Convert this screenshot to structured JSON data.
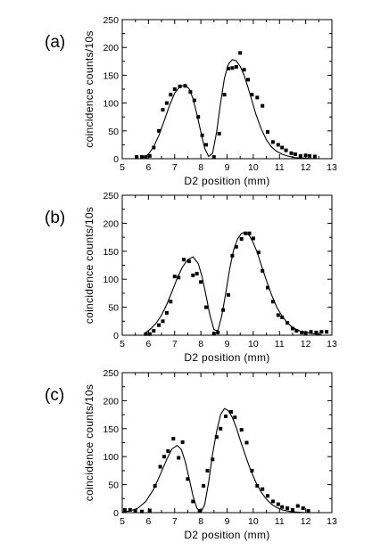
{
  "chart_data": [
    {
      "type": "scatter",
      "panel_label": "(a)",
      "xlabel": "D2 position (mm)",
      "ylabel": "coincidence counts/10s",
      "xlim": [
        5,
        13
      ],
      "ylim": [
        0,
        250
      ],
      "xticks": [
        "5",
        "6",
        "7",
        "8",
        "9",
        "10",
        "11",
        "12",
        "13"
      ],
      "yticks": [
        "0",
        "50",
        "100",
        "150",
        "200",
        "250"
      ],
      "series": [
        {
          "kind": "points",
          "x": [
            5.55,
            5.75,
            5.9,
            6.05,
            6.2,
            6.4,
            6.55,
            6.7,
            6.85,
            7.0,
            7.2,
            7.4,
            7.6,
            7.75,
            7.9,
            8.05,
            8.2,
            8.5,
            8.7,
            8.9,
            9.05,
            9.2,
            9.35,
            9.5,
            9.65,
            9.8,
            9.95,
            10.15,
            10.35,
            10.55,
            10.75,
            10.95,
            11.1,
            11.25,
            11.45,
            11.6,
            11.8,
            12.0,
            12.15,
            12.35
          ],
          "y": [
            3,
            3,
            3,
            5,
            20,
            50,
            88,
            100,
            115,
            125,
            130,
            131,
            120,
            105,
            75,
            42,
            25,
            3,
            45,
            115,
            162,
            163,
            165,
            190,
            160,
            142,
            115,
            110,
            95,
            48,
            30,
            25,
            20,
            15,
            10,
            8,
            5,
            6,
            5,
            4
          ]
        },
        {
          "kind": "line",
          "x": [
            5.8,
            6.0,
            6.2,
            6.4,
            6.6,
            6.8,
            7.0,
            7.2,
            7.4,
            7.55,
            7.7,
            7.85,
            8.0,
            8.15,
            8.3,
            8.45,
            8.6,
            8.75,
            8.9,
            9.05,
            9.2,
            9.35,
            9.5,
            9.65,
            9.8,
            9.95,
            10.1,
            10.3,
            10.5,
            10.7,
            10.9,
            11.1,
            11.3,
            11.6,
            12.0,
            12.4
          ],
          "y": [
            2,
            8,
            22,
            42,
            68,
            95,
            118,
            130,
            132,
            126,
            108,
            80,
            48,
            18,
            4,
            10,
            48,
            100,
            145,
            170,
            178,
            176,
            166,
            150,
            128,
            104,
            80,
            54,
            34,
            21,
            13,
            8,
            5,
            2,
            1,
            0
          ]
        }
      ]
    },
    {
      "type": "scatter",
      "panel_label": "(b)",
      "xlabel": "D2 position (mm)",
      "ylabel": "coincidence counts/10s",
      "xlim": [
        5,
        13
      ],
      "ylim": [
        0,
        250
      ],
      "xticks": [
        "5",
        "6",
        "7",
        "8",
        "9",
        "10",
        "11",
        "12",
        "13"
      ],
      "yticks": [
        "0",
        "50",
        "100",
        "150",
        "200",
        "250"
      ],
      "series": [
        {
          "kind": "points",
          "x": [
            5.9,
            6.05,
            6.2,
            6.4,
            6.55,
            6.7,
            6.85,
            7.0,
            7.15,
            7.35,
            7.55,
            7.7,
            7.85,
            8.0,
            8.2,
            8.5,
            8.65,
            8.85,
            9.05,
            9.2,
            9.35,
            9.55,
            9.7,
            9.85,
            10.0,
            10.2,
            10.35,
            10.55,
            10.75,
            10.95,
            11.1,
            11.3,
            11.5,
            11.65,
            11.85,
            12.0,
            12.2,
            12.4,
            12.6,
            12.8
          ],
          "y": [
            2,
            2,
            8,
            18,
            25,
            40,
            60,
            105,
            103,
            135,
            132,
            107,
            110,
            95,
            50,
            3,
            5,
            45,
            72,
            142,
            158,
            172,
            182,
            182,
            173,
            148,
            115,
            85,
            60,
            36,
            32,
            22,
            12,
            8,
            5,
            4,
            6,
            5,
            6,
            6
          ]
        },
        {
          "kind": "line",
          "x": [
            5.9,
            6.1,
            6.3,
            6.5,
            6.7,
            6.9,
            7.1,
            7.3,
            7.5,
            7.7,
            7.9,
            8.05,
            8.2,
            8.35,
            8.5,
            8.65,
            8.8,
            8.95,
            9.1,
            9.25,
            9.4,
            9.55,
            9.7,
            9.85,
            10.0,
            10.15,
            10.3,
            10.5,
            10.7,
            10.9,
            11.1,
            11.3,
            11.5,
            11.8,
            12.2,
            12.6
          ],
          "y": [
            5,
            12,
            22,
            36,
            55,
            78,
            102,
            122,
            135,
            140,
            128,
            104,
            70,
            35,
            10,
            8,
            35,
            75,
            118,
            152,
            172,
            182,
            184,
            178,
            165,
            148,
            126,
            98,
            72,
            50,
            34,
            22,
            14,
            7,
            3,
            1
          ]
        }
      ]
    },
    {
      "type": "scatter",
      "panel_label": "(c)",
      "xlabel": "D2 position (mm)",
      "ylabel": "coincidence counts/10s",
      "xlim": [
        5,
        13
      ],
      "ylim": [
        0,
        250
      ],
      "xticks": [
        "5",
        "6",
        "7",
        "8",
        "9",
        "10",
        "11",
        "12",
        "13"
      ],
      "yticks": [
        "0",
        "50",
        "100",
        "150",
        "200",
        "250"
      ],
      "series": [
        {
          "kind": "points",
          "x": [
            5.1,
            5.3,
            5.5,
            5.75,
            6.05,
            6.25,
            6.45,
            6.6,
            6.75,
            6.95,
            7.15,
            7.3,
            7.5,
            7.7,
            7.95,
            8.1,
            8.25,
            8.45,
            8.6,
            8.75,
            8.95,
            9.15,
            9.3,
            9.55,
            9.75,
            9.95,
            10.15,
            10.35,
            10.55,
            10.75,
            10.95,
            11.1,
            11.3,
            11.5,
            11.7,
            11.9,
            12.1
          ],
          "y": [
            5,
            5,
            3,
            2,
            4,
            48,
            82,
            100,
            110,
            132,
            98,
            126,
            60,
            20,
            3,
            48,
            75,
            95,
            135,
            150,
            172,
            180,
            170,
            148,
            125,
            75,
            48,
            42,
            30,
            20,
            15,
            10,
            8,
            5,
            12,
            8,
            3
          ]
        },
        {
          "kind": "line",
          "x": [
            5.0,
            5.3,
            5.6,
            5.9,
            6.2,
            6.45,
            6.7,
            6.9,
            7.1,
            7.25,
            7.4,
            7.55,
            7.7,
            7.85,
            8.0,
            8.15,
            8.3,
            8.45,
            8.6,
            8.75,
            8.9,
            9.05,
            9.2,
            9.35,
            9.5,
            9.7,
            9.9,
            10.1,
            10.3,
            10.5,
            10.7,
            10.9,
            11.1,
            11.4,
            11.7,
            12.0
          ],
          "y": [
            1,
            3,
            8,
            20,
            42,
            68,
            95,
            114,
            120,
            113,
            92,
            62,
            30,
            8,
            0,
            15,
            55,
            105,
            145,
            175,
            186,
            182,
            170,
            152,
            130,
            102,
            76,
            54,
            37,
            24,
            15,
            9,
            5,
            2,
            1,
            0
          ]
        }
      ]
    }
  ]
}
